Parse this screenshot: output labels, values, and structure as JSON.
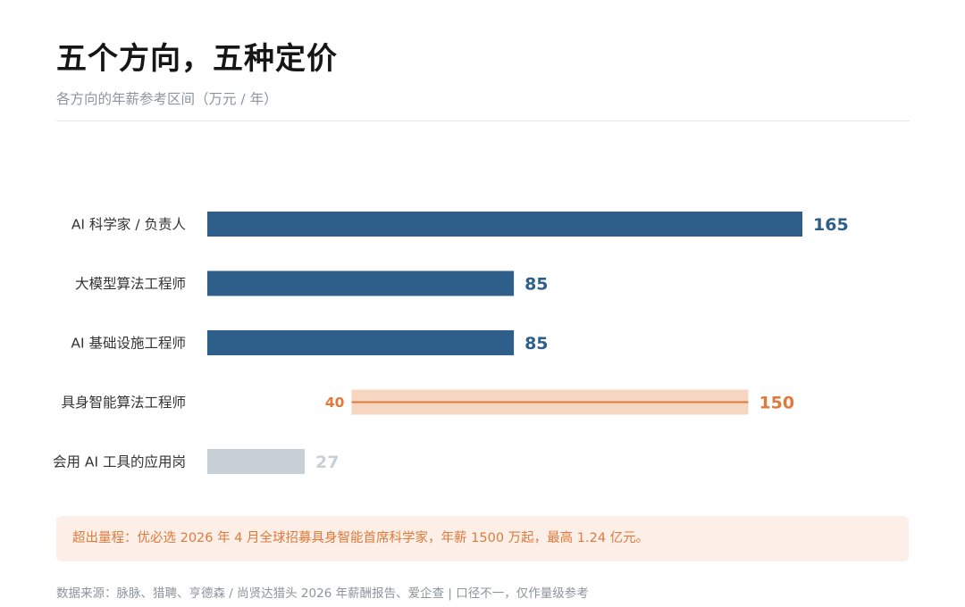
{
  "header": {
    "title": "五个方向，五种定价",
    "subtitle": "各方向的年薪参考区间（万元 / 年）"
  },
  "colors": {
    "primary": "#2e5e8a",
    "accent": "#e07a3c",
    "accent_light": "#f6d5c1",
    "muted": "#c8d0d7",
    "muted_text": "#c8d0d7"
  },
  "chart_data": {
    "type": "bar",
    "orientation": "horizontal",
    "title": "五个方向，五种定价",
    "subtitle": "各方向的年薪参考区间（万元 / 年）",
    "categories": [
      "AI 科学家 / 负责人",
      "大模型算法工程师",
      "AI 基础设施工程师",
      "具身智能算法工程师",
      "会用 AI 工具的应用岗"
    ],
    "bars": [
      {
        "category": "AI 科学家 / 负责人",
        "start": 0,
        "end": 165,
        "label": "165",
        "style": "primary"
      },
      {
        "category": "大模型算法工程师",
        "start": 0,
        "end": 85,
        "label": "85",
        "style": "primary"
      },
      {
        "category": "AI 基础设施工程师",
        "start": 0,
        "end": 85,
        "label": "85",
        "style": "primary"
      },
      {
        "category": "具身智能算法工程师",
        "start": 40,
        "end": 150,
        "start_label": "40",
        "label": "150",
        "style": "range"
      },
      {
        "category": "会用 AI 工具的应用岗",
        "start": 0,
        "end": 27,
        "label": "27",
        "style": "muted"
      }
    ],
    "xlim": [
      0,
      165
    ],
    "grid": false,
    "legend": "none"
  },
  "note": {
    "text": "超出量程：优必选 2026 年 4 月全球招募具身智能首席科学家，年薪 1500 万起，最高 1.24 亿元。"
  },
  "source": {
    "text": "数据来源：脉脉、猎聘、亨德森 / 尚贤达猎头 2026 年薪酬报告、爱企查 | 口径不一，仅作量级参考"
  }
}
